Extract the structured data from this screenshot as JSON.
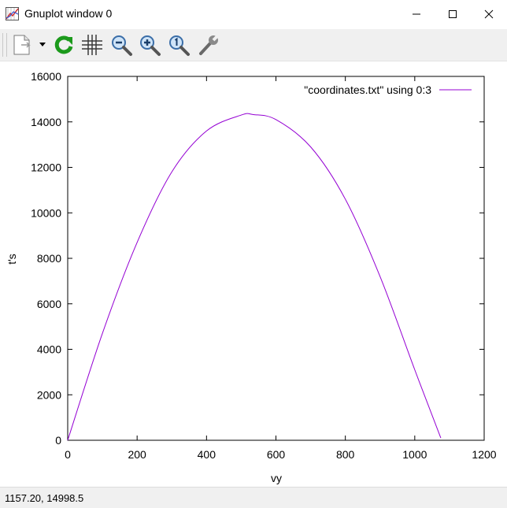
{
  "window": {
    "title": "Gnuplot window 0",
    "controls": [
      "minimize",
      "maximize",
      "close"
    ]
  },
  "toolbar": {
    "buttons": [
      "copy-icon",
      "dropdown-arrow-icon",
      "replot-icon",
      "grid-icon",
      "zoom-out-icon",
      "zoom-in-icon",
      "zoom-reset-icon",
      "settings-wrench-icon"
    ]
  },
  "status": {
    "coordinates": "1157.20,  14998.5"
  },
  "colors": {
    "series": "#9400d3",
    "toolbar_bg": "#f0f0f0",
    "replot_green": "#1c9a1c"
  },
  "chart_data": {
    "type": "line",
    "title": "",
    "xlabel": "vy",
    "ylabel": "t's",
    "xlim": [
      0,
      1200
    ],
    "ylim": [
      0,
      16000
    ],
    "xticks": [
      "0",
      "200",
      "400",
      "600",
      "800",
      "1000",
      "1200"
    ],
    "yticks": [
      "0",
      "2000",
      "4000",
      "6000",
      "8000",
      "10000",
      "12000",
      "14000",
      "16000"
    ],
    "legend_position": "top-right",
    "series": [
      {
        "name": "\"coordinates.txt\" using 0:3",
        "x": [
          0,
          100,
          200,
          300,
          400,
          500,
          535,
          600,
          700,
          800,
          900,
          1000,
          1075
        ],
        "y": [
          0,
          4700,
          8700,
          11800,
          13600,
          14300,
          14320,
          14100,
          12900,
          10600,
          7200,
          3100,
          100
        ]
      }
    ]
  }
}
